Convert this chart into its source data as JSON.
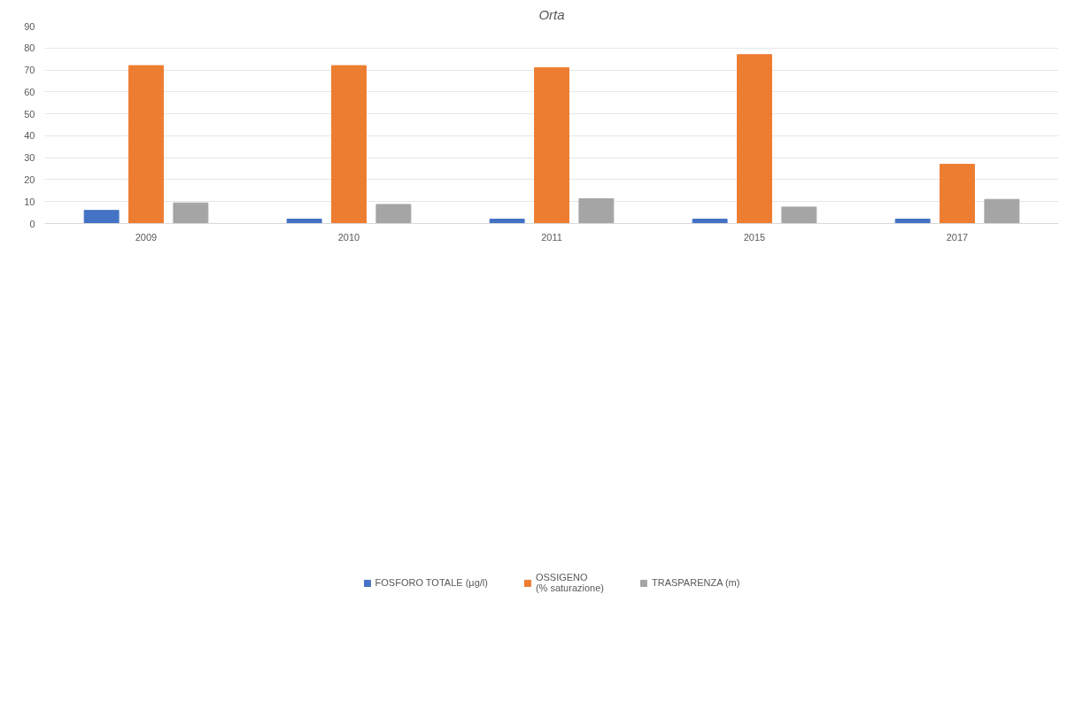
{
  "chart_data": {
    "type": "bar",
    "title": "Orta",
    "categories": [
      "2009",
      "2010",
      "2011",
      "2015",
      "2017"
    ],
    "series": [
      {
        "name": "FOSFORO TOTALE (µg/l)",
        "color": "#4472c4",
        "values": [
          6,
          2,
          2,
          2,
          2
        ]
      },
      {
        "name": "OSSIGENO\n(% saturazione)",
        "color": "#ed7d31",
        "values": [
          72,
          72,
          71,
          77,
          27
        ]
      },
      {
        "name": "TRASPARENZA (m)",
        "color": "#a5a5a5",
        "values": [
          9.4,
          8.7,
          11.3,
          7.5,
          11
        ]
      }
    ],
    "ylim": [
      0,
      90
    ],
    "yticks": [
      0,
      10,
      20,
      30,
      40,
      50,
      60,
      70,
      80,
      90
    ],
    "grid": "y",
    "legend": "bottom"
  }
}
